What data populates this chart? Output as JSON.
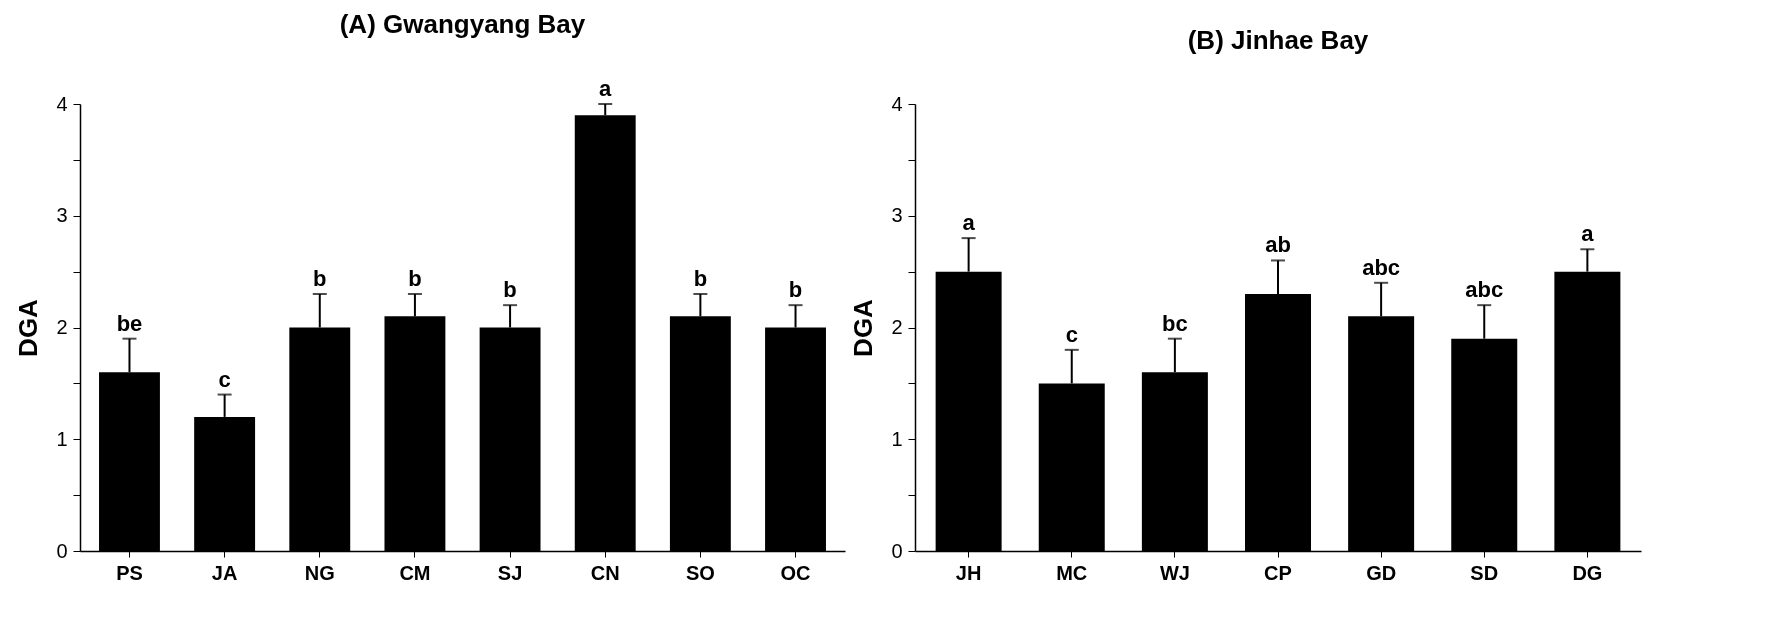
{
  "chart_data": [
    {
      "type": "bar",
      "title": "(A) Gwangyang Bay",
      "ylabel": "DGA",
      "categories": [
        "PS",
        "JA",
        "NG",
        "CM",
        "SJ",
        "CN",
        "SO",
        "OC"
      ],
      "series": [
        {
          "color": "#000000",
          "values": [
            1.6,
            1.2,
            2.0,
            2.1,
            2.0,
            3.9,
            2.1,
            2.0
          ],
          "errors": [
            [
              1.6,
              1.9
            ],
            [
              1.2,
              1.4
            ],
            [
              2.0,
              2.3
            ],
            [
              2.1,
              2.3
            ],
            [
              2.0,
              2.2
            ],
            [
              3.9,
              4.0
            ],
            [
              2.1,
              2.3
            ],
            [
              2.0,
              2.2
            ]
          ]
        }
      ],
      "ylim": [
        0,
        4
      ],
      "yticks": [
        0,
        {
          "value": 0.5,
          "label": null
        },
        1,
        {
          "value": 1.5,
          "label": null
        },
        2,
        {
          "value": 2.5,
          "label": null
        },
        3,
        {
          "value": 3.5,
          "label": null
        },
        4
      ],
      "grid": false,
      "annotations": [
        {
          "text": "be",
          "x": "PS",
          "y": 1.9
        },
        {
          "text": "c",
          "x": "JA",
          "y": 1.4
        },
        {
          "text": "b",
          "x": "NG",
          "y": 2.3
        },
        {
          "text": "b",
          "x": "CM",
          "y": 2.3
        },
        {
          "text": "b",
          "x": "SJ",
          "y": 2.2
        },
        {
          "text": "a",
          "x": "CN",
          "y": 4.0
        },
        {
          "text": "b",
          "x": "SO",
          "y": 2.3
        },
        {
          "text": "b",
          "x": "OC",
          "y": 2.2
        }
      ]
    },
    {
      "type": "bar",
      "title": "(B) Jinhae Bay",
      "ylabel": "DGA",
      "categories": [
        "JH",
        "MC",
        "WJ",
        "CP",
        "GD",
        "SD",
        "DG"
      ],
      "series": [
        {
          "color": "#000000",
          "values": [
            2.5,
            1.5,
            1.6,
            2.3,
            2.1,
            1.9,
            2.5
          ],
          "errors": [
            [
              2.5,
              2.8
            ],
            [
              1.5,
              1.8
            ],
            [
              1.6,
              1.9
            ],
            [
              2.3,
              2.6
            ],
            [
              2.1,
              2.4
            ],
            [
              1.9,
              2.2
            ],
            [
              2.5,
              2.7
            ]
          ]
        }
      ],
      "ylim": [
        0,
        4
      ],
      "yticks": [
        0,
        {
          "value": 0.5,
          "label": null
        },
        1,
        {
          "value": 1.5,
          "label": null
        },
        2,
        {
          "value": 2.5,
          "label": null
        },
        3,
        {
          "value": 3.5,
          "label": null
        },
        4
      ],
      "grid": false,
      "annotations": [
        {
          "text": "a",
          "x": "JH",
          "y": 2.8
        },
        {
          "text": "c",
          "x": "MC",
          "y": 1.8
        },
        {
          "text": "bc",
          "x": "WJ",
          "y": 1.9
        },
        {
          "text": "ab",
          "x": "CP",
          "y": 2.6
        },
        {
          "text": "abc",
          "x": "GD",
          "y": 2.4
        },
        {
          "text": "abc",
          "x": "SD",
          "y": 2.2
        },
        {
          "text": "a",
          "x": "DG",
          "y": 2.7
        }
      ]
    }
  ]
}
